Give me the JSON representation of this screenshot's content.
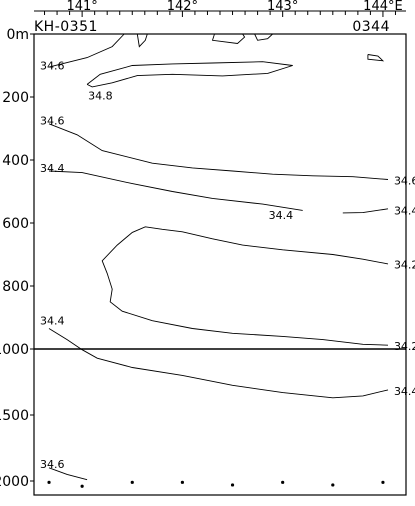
{
  "chart_data": {
    "type": "contour",
    "top_axis": {
      "tick_labels": [
        "141°",
        "142°",
        "143°",
        "144°E"
      ],
      "ticks": [
        140.625,
        140.75,
        140.875,
        141,
        141.125,
        141.25,
        141.375,
        141.5,
        141.625,
        141.75,
        141.875,
        142,
        142.125,
        142.25,
        142.375,
        142.5,
        142.625,
        142.75,
        142.875,
        143,
        143.125,
        143.25,
        143.375,
        143.5,
        143.625,
        143.75,
        143.875,
        144,
        144.125
      ],
      "range": [
        140.52,
        144.23
      ]
    },
    "station_labels": {
      "left": "KH-0351",
      "right": "0344"
    },
    "y_axis": {
      "unit": "m",
      "upper_ticks": [
        0,
        200,
        400,
        600,
        800,
        1000
      ],
      "upper_tick_labels": [
        "0m",
        "200",
        "400",
        "600",
        "800",
        "1000"
      ],
      "lower_ticks": [
        1000,
        1500,
        2000
      ],
      "lower_tick_labels": [
        "1500",
        "2000"
      ],
      "range": [
        0,
        2000
      ]
    },
    "stations": [
      {
        "x": 140.67,
        "depth": 2010
      },
      {
        "x": 141.0,
        "depth": 2040
      },
      {
        "x": 141.5,
        "depth": 2010
      },
      {
        "x": 142.0,
        "depth": 2010
      },
      {
        "x": 142.5,
        "depth": 2030
      },
      {
        "x": 143.0,
        "depth": 2010
      },
      {
        "x": 143.5,
        "depth": 2030
      },
      {
        "x": 144.0,
        "depth": 2010
      }
    ],
    "contours": [
      {
        "level": "34.6",
        "points": [
          [
            140.67,
            105
          ],
          [
            141.05,
            75
          ],
          [
            141.3,
            40
          ],
          [
            141.42,
            0
          ]
        ]
      },
      {
        "level": "34.6",
        "points": [
          [
            141.55,
            0
          ],
          [
            141.57,
            40
          ],
          [
            141.63,
            20
          ],
          [
            141.65,
            0
          ]
        ]
      },
      {
        "level": "34.6",
        "points": [
          [
            142.32,
            0
          ],
          [
            142.3,
            20
          ],
          [
            142.55,
            30
          ],
          [
            142.62,
            10
          ],
          [
            142.6,
            0
          ]
        ]
      },
      {
        "level": "34.6",
        "points": [
          [
            142.72,
            0
          ],
          [
            142.75,
            20
          ],
          [
            142.85,
            15
          ],
          [
            142.9,
            0
          ]
        ]
      },
      {
        "level": "34.6",
        "points": [
          [
            143.85,
            65
          ],
          [
            143.95,
            70
          ],
          [
            144.0,
            85
          ],
          [
            143.85,
            80
          ],
          [
            143.85,
            65
          ]
        ]
      },
      {
        "level": "34.8",
        "points": [
          [
            141.05,
            160
          ],
          [
            141.18,
            128
          ],
          [
            141.5,
            100
          ],
          [
            141.9,
            95
          ],
          [
            142.3,
            92
          ],
          [
            142.8,
            88
          ],
          [
            143.1,
            100
          ],
          [
            142.85,
            125
          ],
          [
            142.4,
            133
          ],
          [
            141.9,
            128
          ],
          [
            141.55,
            132
          ],
          [
            141.3,
            155
          ],
          [
            141.1,
            168
          ],
          [
            141.05,
            160
          ]
        ]
      },
      {
        "level": "34.6",
        "points": [
          [
            140.67,
            285
          ],
          [
            140.95,
            320
          ],
          [
            141.2,
            370
          ],
          [
            141.7,
            410
          ],
          [
            142.1,
            425
          ],
          [
            142.5,
            435
          ],
          [
            142.9,
            445
          ],
          [
            143.3,
            450
          ],
          [
            143.7,
            453
          ],
          [
            144.05,
            462
          ]
        ]
      },
      {
        "level": "34.4",
        "points": [
          [
            140.67,
            435
          ],
          [
            141.0,
            440
          ],
          [
            141.5,
            475
          ],
          [
            141.9,
            500
          ],
          [
            142.3,
            522
          ],
          [
            142.8,
            540
          ],
          [
            143.2,
            560
          ]
        ]
      },
      {
        "level": "34.4",
        "points": [
          [
            143.6,
            568
          ],
          [
            143.8,
            567
          ],
          [
            144.05,
            555
          ]
        ]
      },
      {
        "level": "34.2",
        "points": [
          [
            144.05,
            730
          ],
          [
            143.8,
            715
          ],
          [
            143.5,
            700
          ],
          [
            143.0,
            685
          ],
          [
            142.6,
            670
          ],
          [
            142.3,
            650
          ],
          [
            142.0,
            628
          ],
          [
            141.8,
            620
          ],
          [
            141.63,
            612
          ],
          [
            141.5,
            630
          ],
          [
            141.35,
            670
          ],
          [
            141.2,
            720
          ],
          [
            141.25,
            760
          ],
          [
            141.3,
            810
          ],
          [
            141.28,
            850
          ],
          [
            141.4,
            880
          ],
          [
            141.7,
            910
          ],
          [
            142.1,
            935
          ],
          [
            142.5,
            950
          ],
          [
            143.0,
            960
          ],
          [
            143.4,
            970
          ],
          [
            143.8,
            985
          ],
          [
            144.05,
            988
          ]
        ]
      },
      {
        "level": "34.4",
        "points": [
          [
            140.67,
            935
          ],
          [
            140.85,
            970
          ],
          [
            141.0,
            1005
          ],
          [
            141.15,
            1070
          ],
          [
            141.5,
            1140
          ],
          [
            142.0,
            1200
          ],
          [
            142.5,
            1275
          ],
          [
            143.0,
            1330
          ],
          [
            143.5,
            1370
          ],
          [
            143.8,
            1355
          ],
          [
            144.05,
            1310
          ]
        ]
      },
      {
        "level": "34.6",
        "points": [
          [
            140.67,
            1900
          ],
          [
            140.85,
            1950
          ],
          [
            141.05,
            1990
          ]
        ]
      }
    ],
    "contour_labels": [
      {
        "text": "34.6",
        "x": 140.52,
        "depth": 100
      },
      {
        "text": "34.8",
        "x": 141.0,
        "depth": 195
      },
      {
        "text": "34.6",
        "x": 140.52,
        "depth": 275
      },
      {
        "text": "34.4",
        "x": 140.52,
        "depth": 425
      },
      {
        "text": "34.6",
        "x": 144.05,
        "depth": 465
      },
      {
        "text": "34.4",
        "x": 142.8,
        "depth": 575
      },
      {
        "text": "34.4",
        "x": 144.05,
        "depth": 560
      },
      {
        "text": "34.2",
        "x": 144.05,
        "depth": 732
      },
      {
        "text": "34.4",
        "x": 140.52,
        "depth": 910
      },
      {
        "text": "34.2",
        "x": 144.05,
        "depth": 990
      },
      {
        "text": "34.4",
        "x": 144.05,
        "depth": 1320
      },
      {
        "text": "34.6",
        "x": 140.52,
        "depth": 1870
      }
    ]
  }
}
